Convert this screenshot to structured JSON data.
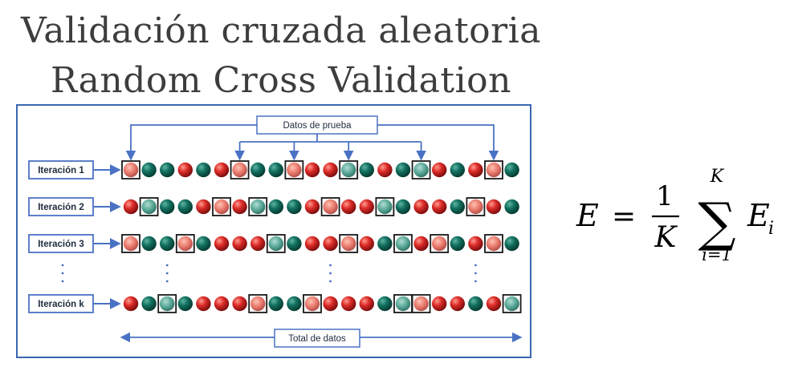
{
  "title": {
    "line1": "Validación cruzada aleatoria",
    "line2": "Random Cross Validation"
  },
  "diagram": {
    "test_data_label": "Datos de prueba",
    "total_data_label": "Total de datos",
    "colors": {
      "frame": "#3b67b3",
      "arrow": "#4a72c4",
      "ball_red": "#d32a2a",
      "ball_green": "#0f6a57",
      "test_box": "#1a1a1a"
    },
    "top_arrow_targets": [
      0,
      6,
      9,
      12,
      16,
      20
    ],
    "rows": [
      {
        "label": "Iteración 1",
        "pattern": "RGGRGRRGGRRRGGRGGRGRRG",
        "test_positions": [
          0,
          6,
          9,
          12,
          16,
          20
        ]
      },
      {
        "label": "Iteración 2",
        "pattern": "RGGGRRRGGGRRRRGGRRGRRG",
        "test_positions": [
          1,
          5,
          7,
          11,
          14,
          19
        ]
      },
      {
        "label": "Iteración 3",
        "pattern": "RGGRGRRRGGRRRRGGRRGRRG",
        "test_positions": [
          0,
          3,
          8,
          12,
          15,
          17,
          20
        ]
      },
      {
        "label": "Iteración k",
        "pattern": "RGGGRRRRGGRRRRGGRRRGRG",
        "test_positions": [
          2,
          7,
          10,
          15,
          16,
          21
        ]
      }
    ],
    "ellipsis_columns": [
      2,
      11,
      19
    ]
  },
  "formula": {
    "lhs": "E",
    "equals": "=",
    "numerator": "1",
    "denominator": "K",
    "sum_symbol": "∑",
    "upper_limit": "K",
    "lower_limit": "i=1",
    "term": "E",
    "term_subscript": "i"
  }
}
